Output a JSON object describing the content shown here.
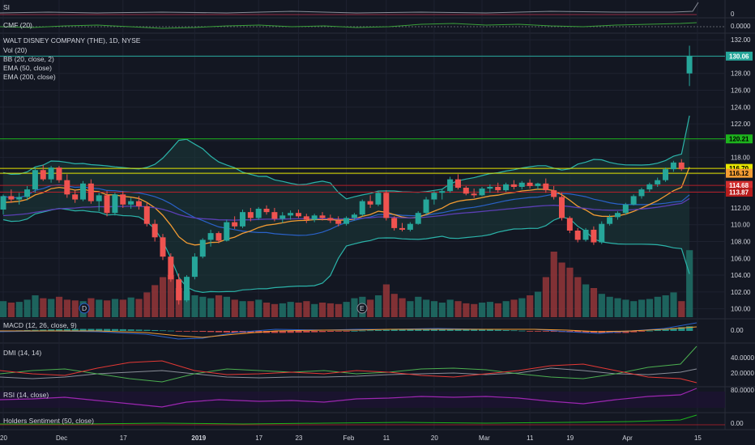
{
  "colors": {
    "background": "#131722",
    "grid": "#1e2230",
    "divider": "#2a2e39",
    "up": "#26a69a",
    "down": "#ef5350",
    "bb": "#2bb3a9",
    "ema50": "#f39c33",
    "ema200": "#5b3fb5",
    "ema_blue": "#2a62c9",
    "hline_green": "#1db31d",
    "hline_yellow": "#e6e600",
    "hline_red": "#b3202a"
  },
  "panes": {
    "si": {
      "title": "SI",
      "value_label": "0"
    },
    "cmf": {
      "title": "CMF (20)",
      "value_label": "0.0000"
    },
    "main": {
      "title": "WALT DISNEY COMPANY (THE), 1D, NYSE",
      "legend": [
        "Vol (20)",
        "BB (20, close, 2)",
        "EMA (50, close)",
        "EMA (200, close)"
      ],
      "event_markers": [
        "D",
        "E"
      ]
    },
    "macd": {
      "title": "MACD (12, 26, close, 9)",
      "value_label": "0.00"
    },
    "dmi": {
      "title": "DMI (14, 14)",
      "value_labels": [
        "40.0000",
        "20.0000"
      ]
    },
    "rsi": {
      "title": "RSI (14, close)",
      "value_label": "80.0000"
    },
    "sentiment": {
      "title": "Holders Sentiment (50, close)",
      "value_label": "0.00"
    }
  },
  "price_tags": [
    {
      "value": "130.06",
      "bg": "#26a69a",
      "fg": "#ffffff"
    },
    {
      "value": "120.21",
      "bg": "#1db31d",
      "fg": "#000000"
    },
    {
      "value": "116.70",
      "bg": "#e6e600",
      "fg": "#000000"
    },
    {
      "value": "116.12",
      "bg": "#f39c33",
      "fg": "#000000"
    },
    {
      "value": "114.68",
      "bg": "#d32f2f",
      "fg": "#ffffff"
    },
    {
      "value": "113.87",
      "bg": "#b71c1c",
      "fg": "#ffffff"
    }
  ],
  "chart_data": {
    "type": "candlestick",
    "title": "WALT DISNEY COMPANY (THE), 1D, NYSE",
    "y_ticks": [
      100,
      102,
      104,
      106,
      108,
      110,
      112,
      114,
      116,
      118,
      120,
      122,
      124,
      126,
      128,
      130,
      132
    ],
    "ylim": [
      99,
      132.5
    ],
    "x_tick_labels": [
      "20",
      "Dec",
      "17",
      "2019",
      "17",
      "23",
      "Feb",
      "11",
      "20",
      "Mar",
      "11",
      "19",
      "Apr",
      "15"
    ],
    "horizontal_levels": [
      {
        "value": 130.06,
        "color": "#26a69a"
      },
      {
        "value": 120.21,
        "color": "#1db31d"
      },
      {
        "value": 116.7,
        "color": "#e6e600"
      },
      {
        "value": 116.12,
        "color": "#e6e600"
      },
      {
        "value": 114.68,
        "color": "#b3202a"
      },
      {
        "value": 113.87,
        "color": "#b3202a"
      }
    ],
    "ohlc": [
      [
        111.8,
        113.6,
        111.2,
        113.4
      ],
      [
        113.4,
        114.2,
        112.6,
        113.0
      ],
      [
        113.0,
        113.8,
        112.4,
        113.3
      ],
      [
        113.3,
        114.6,
        112.9,
        114.2
      ],
      [
        114.2,
        116.9,
        113.8,
        116.5
      ],
      [
        116.5,
        117.1,
        115.2,
        115.4
      ],
      [
        115.4,
        117.0,
        115.0,
        116.8
      ],
      [
        116.8,
        117.0,
        115.0,
        115.3
      ],
      [
        115.3,
        116.0,
        113.2,
        113.6
      ],
      [
        113.6,
        114.1,
        112.6,
        113.0
      ],
      [
        113.0,
        115.2,
        112.8,
        114.9
      ],
      [
        114.9,
        115.4,
        112.5,
        112.8
      ],
      [
        112.8,
        113.8,
        111.6,
        113.5
      ],
      [
        113.5,
        114.0,
        111.0,
        111.4
      ],
      [
        111.4,
        113.8,
        111.1,
        113.6
      ],
      [
        113.6,
        114.0,
        112.0,
        112.4
      ],
      [
        112.4,
        113.2,
        111.9,
        112.8
      ],
      [
        112.8,
        113.4,
        111.8,
        112.2
      ],
      [
        112.2,
        112.6,
        109.8,
        110.1
      ],
      [
        110.1,
        110.6,
        108.0,
        108.5
      ],
      [
        108.5,
        108.9,
        105.8,
        106.2
      ],
      [
        106.2,
        106.6,
        103.2,
        103.5
      ],
      [
        103.5,
        104.2,
        100.5,
        101.0
      ],
      [
        101.0,
        104.0,
        100.8,
        103.8
      ],
      [
        103.8,
        106.6,
        103.5,
        106.2
      ],
      [
        106.2,
        108.4,
        106.0,
        108.2
      ],
      [
        108.2,
        109.4,
        107.4,
        109.0
      ],
      [
        109.0,
        109.2,
        107.8,
        108.1
      ],
      [
        108.1,
        110.6,
        108.0,
        110.3
      ],
      [
        110.3,
        111.0,
        109.5,
        109.8
      ],
      [
        109.8,
        111.8,
        109.6,
        111.5
      ],
      [
        111.5,
        112.0,
        110.4,
        110.8
      ],
      [
        110.8,
        112.1,
        110.6,
        111.9
      ],
      [
        111.9,
        112.3,
        111.2,
        111.5
      ],
      [
        111.5,
        112.0,
        110.4,
        110.7
      ],
      [
        110.7,
        111.5,
        110.2,
        111.1
      ],
      [
        111.1,
        111.7,
        110.6,
        111.4
      ],
      [
        111.4,
        111.8,
        110.8,
        111.0
      ],
      [
        111.0,
        111.3,
        110.2,
        110.6
      ],
      [
        110.6,
        111.3,
        110.3,
        111.1
      ],
      [
        111.1,
        111.5,
        110.5,
        110.8
      ],
      [
        110.8,
        111.2,
        110.2,
        110.5
      ],
      [
        110.5,
        111.0,
        109.8,
        110.1
      ],
      [
        110.1,
        111.0,
        109.9,
        110.8
      ],
      [
        110.8,
        111.4,
        110.5,
        111.2
      ],
      [
        111.2,
        113.0,
        111.0,
        112.8
      ],
      [
        112.8,
        113.5,
        112.0,
        112.4
      ],
      [
        112.4,
        114.0,
        112.2,
        113.8
      ],
      [
        113.8,
        114.1,
        110.5,
        110.8
      ],
      [
        110.8,
        111.0,
        109.3,
        109.6
      ],
      [
        109.6,
        110.2,
        109.2,
        109.4
      ],
      [
        109.4,
        110.3,
        109.2,
        110.1
      ],
      [
        110.1,
        111.6,
        110.0,
        111.4
      ],
      [
        111.4,
        113.3,
        111.2,
        113.0
      ],
      [
        113.0,
        114.0,
        112.4,
        113.8
      ],
      [
        113.8,
        114.3,
        113.0,
        114.0
      ],
      [
        114.0,
        115.7,
        113.8,
        115.4
      ],
      [
        115.4,
        116.0,
        114.2,
        114.4
      ],
      [
        114.4,
        114.6,
        113.5,
        113.7
      ],
      [
        113.7,
        114.3,
        113.2,
        113.5
      ],
      [
        113.5,
        114.5,
        113.4,
        114.3
      ],
      [
        114.3,
        114.8,
        113.8,
        114.5
      ],
      [
        114.5,
        115.0,
        113.8,
        114.1
      ],
      [
        114.1,
        115.0,
        113.9,
        114.8
      ],
      [
        114.8,
        115.3,
        114.2,
        114.5
      ],
      [
        114.5,
        115.2,
        114.2,
        115.0
      ],
      [
        115.0,
        115.4,
        114.3,
        114.6
      ],
      [
        114.6,
        115.0,
        114.2,
        114.9
      ],
      [
        114.9,
        115.5,
        113.8,
        114.1
      ],
      [
        114.1,
        114.6,
        113.0,
        113.3
      ],
      [
        113.3,
        113.8,
        110.5,
        110.8
      ],
      [
        110.8,
        111.0,
        109.0,
        109.3
      ],
      [
        109.3,
        109.6,
        107.9,
        108.2
      ],
      [
        108.2,
        109.6,
        108.0,
        109.4
      ],
      [
        109.4,
        109.8,
        107.6,
        107.9
      ],
      [
        107.9,
        110.4,
        107.7,
        110.1
      ],
      [
        110.1,
        111.2,
        109.9,
        110.9
      ],
      [
        110.9,
        111.6,
        110.6,
        111.4
      ],
      [
        111.4,
        112.6,
        111.2,
        112.4
      ],
      [
        112.4,
        113.6,
        112.3,
        113.4
      ],
      [
        113.4,
        114.4,
        113.1,
        114.2
      ],
      [
        114.2,
        115.0,
        113.9,
        114.8
      ],
      [
        114.8,
        115.6,
        114.5,
        115.3
      ],
      [
        115.3,
        116.8,
        115.1,
        116.6
      ],
      [
        116.6,
        117.6,
        116.3,
        117.4
      ],
      [
        117.4,
        117.8,
        116.4,
        116.6
      ],
      [
        128.0,
        131.3,
        126.5,
        130.1
      ]
    ],
    "volume": [
      0.22,
      0.2,
      0.21,
      0.24,
      0.3,
      0.26,
      0.25,
      0.28,
      0.24,
      0.23,
      0.22,
      0.26,
      0.24,
      0.23,
      0.25,
      0.24,
      0.27,
      0.25,
      0.34,
      0.44,
      0.55,
      0.58,
      0.4,
      0.36,
      0.3,
      0.28,
      0.26,
      0.3,
      0.28,
      0.24,
      0.22,
      0.22,
      0.24,
      0.2,
      0.18,
      0.19,
      0.21,
      0.2,
      0.22,
      0.18,
      0.2,
      0.19,
      0.18,
      0.21,
      0.26,
      0.28,
      0.24,
      0.3,
      0.45,
      0.32,
      0.26,
      0.22,
      0.28,
      0.24,
      0.22,
      0.2,
      0.24,
      0.22,
      0.19,
      0.18,
      0.2,
      0.21,
      0.19,
      0.22,
      0.24,
      0.26,
      0.3,
      0.35,
      0.55,
      0.9,
      0.75,
      0.68,
      0.55,
      0.45,
      0.4,
      0.32,
      0.28,
      0.26,
      0.24,
      0.22,
      0.24,
      0.25,
      0.28,
      0.3,
      0.34,
      0.22,
      0.92
    ]
  }
}
